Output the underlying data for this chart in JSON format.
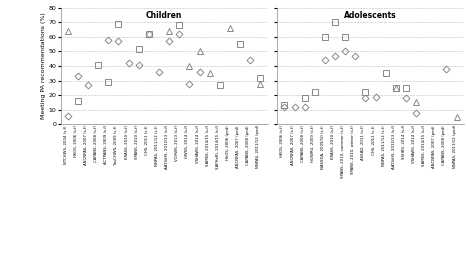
{
  "children_labels": [
    "NTCHWS, 2004 (s-f)",
    "HKOS, 2006 (s-f)",
    "ANCNPAS, 2007 (s-f)",
    "CAPANS, 2008 (s-f)",
    "ACTPANS, 2009 (s-f)",
    "TasCHWS, 2009 (s-f)",
    "ERASS, 2010 (s-f)",
    "SPANS, 2010 (s-f)",
    "CHS, 2011 (s-f)",
    "NNPAS, 2011/12 (s-f)",
    "AATSiHS, 2012/13 (s-f)",
    "VCHWS, 2013 (s-f)",
    "HWSS, 2014 (s-f)",
    "VSHAWS, 2014 (s-f)",
    "SAMSS, 2014/15 (s-f)",
    "SAPHaRI, 2014/15 (s-f)",
    "HkOS, 2006 (ped)",
    "ANCNPAS, 2007 (ped)",
    "CAPANS, 2008 (ped)",
    "NNPAS, 2011/12 (ped)"
  ],
  "children_diamond": [
    6,
    33,
    27,
    null,
    58,
    57,
    42,
    41,
    62,
    36,
    57,
    62,
    28,
    36,
    null,
    null,
    null,
    null,
    44,
    null
  ],
  "children_square": [
    null,
    16,
    null,
    41,
    29,
    69,
    null,
    52,
    62,
    null,
    null,
    68,
    null,
    null,
    null,
    27,
    null,
    55,
    null,
    32
  ],
  "children_triangle": [
    64,
    null,
    null,
    null,
    null,
    null,
    null,
    null,
    null,
    null,
    64,
    null,
    40,
    50,
    35,
    null,
    66,
    null,
    null,
    28
  ],
  "adolescent_labels": [
    "HKOS, 2006 (s-f)",
    "ANCNPAS, 2007 (s-f)",
    "CAPANS, 2008 (s-f)",
    "HOWRU, 2009 (s-f)",
    "NASSDA, 2009/10 (s-f)",
    "ERASS, 2010 (s-f)",
    "SPANS, 2010, summer (s-f)",
    "SPANS, 2010, winter (s-f)",
    "ASSAD, 2011 (s-f)",
    "CHS, 2011 (s-f)",
    "NNPAS, 2011/12 (s-f)",
    "AATSiHS, 2012/13 (s-f)",
    "SSHBS, 2014 (s-f)",
    "VSHAWS, 2014 (s-f)",
    "SAMSS, 2014/15 (s-f)",
    "ANCNPAS, 2007 (ped)",
    "CAPANS, 2008 (ped)",
    "NNPAS, 2011/12 (ped)"
  ],
  "adolescent_diamond": [
    12,
    12,
    12,
    null,
    44,
    47,
    50,
    47,
    18,
    19,
    null,
    null,
    18,
    8,
    null,
    null,
    38,
    null
  ],
  "adolescent_square": [
    13,
    null,
    18,
    22,
    60,
    70,
    60,
    null,
    22,
    null,
    35,
    25,
    25,
    null,
    null,
    null,
    null,
    null
  ],
  "adolescent_triangle": [
    null,
    null,
    null,
    null,
    null,
    null,
    null,
    null,
    null,
    null,
    null,
    25,
    null,
    15,
    null,
    null,
    null,
    5
  ],
  "ylim": [
    0,
    80
  ],
  "yticks": [
    0,
    10,
    20,
    30,
    40,
    50,
    60,
    70,
    80
  ],
  "ylabel": "Meeting PA recommendations (%)",
  "children_title": "Children",
  "adolescent_title": "Adolescents",
  "bg_color": "#ffffff",
  "grid_color": "#bbbbbb",
  "marker_edge_color": "#888888",
  "marker_face_color": "none",
  "marker_edge_width": 0.7,
  "diamond_size": 3.5,
  "square_size": 4.0,
  "triangle_size": 4.0
}
